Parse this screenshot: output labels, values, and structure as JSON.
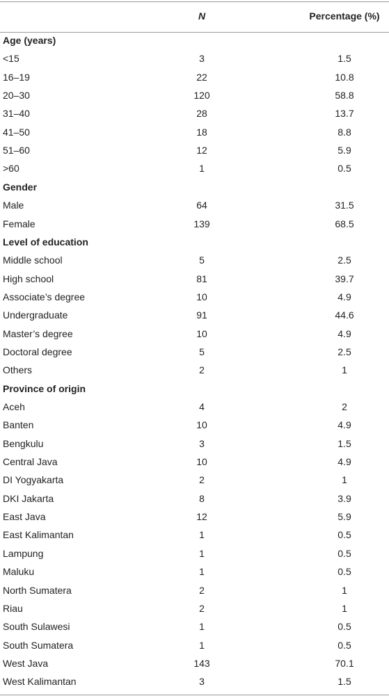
{
  "table": {
    "header": {
      "n": "N",
      "percentage": "Percentage (%)"
    },
    "sections": [
      {
        "title": "Age (years)",
        "rows": [
          [
            "<15",
            3,
            1.5
          ],
          [
            "16–19",
            22,
            10.8
          ],
          [
            "20–30",
            120,
            58.8
          ],
          [
            "31–40",
            28,
            13.7
          ],
          [
            "41–50",
            18,
            8.8
          ],
          [
            "51–60",
            12,
            5.9
          ],
          [
            ">60",
            1,
            0.5
          ]
        ]
      },
      {
        "title": "Gender",
        "rows": [
          [
            "Male",
            64,
            31.5
          ],
          [
            "Female",
            139,
            68.5
          ]
        ]
      },
      {
        "title": "Level of education",
        "rows": [
          [
            "Middle school",
            5,
            2.5
          ],
          [
            "High school",
            81,
            39.7
          ],
          [
            "Associate’s degree",
            10,
            4.9
          ],
          [
            "Undergraduate",
            91,
            44.6
          ],
          [
            "Master’s degree",
            10,
            4.9
          ],
          [
            "Doctoral degree",
            5,
            2.5
          ],
          [
            "Others",
            2,
            1
          ]
        ]
      },
      {
        "title": "Province of origin",
        "rows": [
          [
            "Aceh",
            4,
            2
          ],
          [
            "Banten",
            10,
            4.9
          ],
          [
            "Bengkulu",
            3,
            1.5
          ],
          [
            "Central Java",
            10,
            4.9
          ],
          [
            "DI Yogyakarta",
            2,
            1
          ],
          [
            "DKI Jakarta",
            8,
            3.9
          ],
          [
            "East Java",
            12,
            5.9
          ],
          [
            "East Kalimantan",
            1,
            0.5
          ],
          [
            "Lampung",
            1,
            0.5
          ],
          [
            "Maluku",
            1,
            0.5
          ],
          [
            "North Sumatera",
            2,
            1
          ],
          [
            "Riau",
            2,
            1
          ],
          [
            "South Sulawesi",
            1,
            0.5
          ],
          [
            "South Sumatera",
            1,
            0.5
          ],
          [
            "West Java",
            143,
            70.1
          ],
          [
            "West Kalimantan",
            3,
            1.5
          ]
        ]
      }
    ]
  }
}
